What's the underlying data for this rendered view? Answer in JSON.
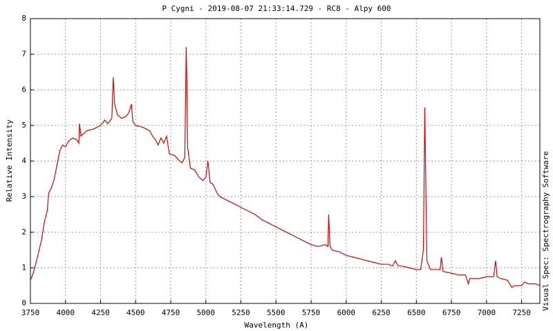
{
  "chart_data": {
    "type": "line",
    "title": "P Cygni - 2019-08-07 21:33:14.729 - RC8 - Alpy 600",
    "x_label": "Wavelength (A)",
    "y_label": "Relative Intensity",
    "side_label": "Visual Spec: Spectrography Software",
    "color": "#dd0000",
    "grid": true,
    "xlim": [
      3750,
      7380
    ],
    "ylim": [
      0,
      8
    ],
    "xticks": [
      3750,
      4000,
      4250,
      4500,
      4750,
      5000,
      5250,
      5500,
      5750,
      6000,
      6250,
      6500,
      6750,
      7000,
      7250
    ],
    "yticks": [
      0,
      1,
      2,
      3,
      4,
      5,
      6,
      7,
      8
    ],
    "x": [
      3750,
      3770,
      3800,
      3830,
      3850,
      3870,
      3880,
      3900,
      3920,
      3940,
      3960,
      3980,
      4000,
      4020,
      4050,
      4080,
      4095,
      4100,
      4110,
      4150,
      4200,
      4250,
      4280,
      4300,
      4330,
      4340,
      4350,
      4370,
      4400,
      4430,
      4450,
      4470,
      4480,
      4500,
      4550,
      4600,
      4620,
      4640,
      4660,
      4680,
      4700,
      4720,
      4740,
      4780,
      4800,
      4830,
      4850,
      4860,
      4865,
      4870,
      4890,
      4920,
      4950,
      4980,
      5000,
      5015,
      5030,
      5050,
      5080,
      5100,
      5150,
      5200,
      5250,
      5300,
      5350,
      5400,
      5450,
      5500,
      5550,
      5600,
      5650,
      5700,
      5750,
      5800,
      5850,
      5870,
      5875,
      5885,
      5900,
      5950,
      6000,
      6050,
      6100,
      6150,
      6200,
      6250,
      6300,
      6330,
      6350,
      6370,
      6400,
      6450,
      6500,
      6530,
      6550,
      6560,
      6565,
      6575,
      6600,
      6650,
      6670,
      6678,
      6690,
      6750,
      6800,
      6850,
      6870,
      6880,
      6950,
      7000,
      7050,
      7065,
      7075,
      7100,
      7150,
      7180,
      7200,
      7250,
      7270,
      7300,
      7350,
      7380
    ],
    "values": [
      0.65,
      0.85,
      1.3,
      1.8,
      2.3,
      2.6,
      3.1,
      3.25,
      3.5,
      3.9,
      4.3,
      4.45,
      4.4,
      4.55,
      4.65,
      4.6,
      4.5,
      5.05,
      4.7,
      4.85,
      4.9,
      5.0,
      5.15,
      5.05,
      5.2,
      6.35,
      5.6,
      5.3,
      5.2,
      5.25,
      5.35,
      5.6,
      5.1,
      5.0,
      4.95,
      4.85,
      4.7,
      4.6,
      4.45,
      4.65,
      4.5,
      4.7,
      4.2,
      4.15,
      4.05,
      3.95,
      4.1,
      7.2,
      6.2,
      4.4,
      3.8,
      3.75,
      3.55,
      3.45,
      3.55,
      4.0,
      3.4,
      3.35,
      3.1,
      3.0,
      2.9,
      2.8,
      2.7,
      2.6,
      2.5,
      2.35,
      2.25,
      2.15,
      2.05,
      1.95,
      1.85,
      1.75,
      1.65,
      1.6,
      1.65,
      1.6,
      2.5,
      1.6,
      1.5,
      1.45,
      1.35,
      1.3,
      1.25,
      1.2,
      1.15,
      1.1,
      1.1,
      1.05,
      1.2,
      1.05,
      1.05,
      1.0,
      0.95,
      0.95,
      1.5,
      5.5,
      4.0,
      1.2,
      0.95,
      0.95,
      0.95,
      1.3,
      0.9,
      0.85,
      0.8,
      0.8,
      0.55,
      0.7,
      0.7,
      0.75,
      0.75,
      1.2,
      0.75,
      0.7,
      0.65,
      0.45,
      0.5,
      0.5,
      0.6,
      0.55,
      0.55,
      0.5
    ]
  }
}
